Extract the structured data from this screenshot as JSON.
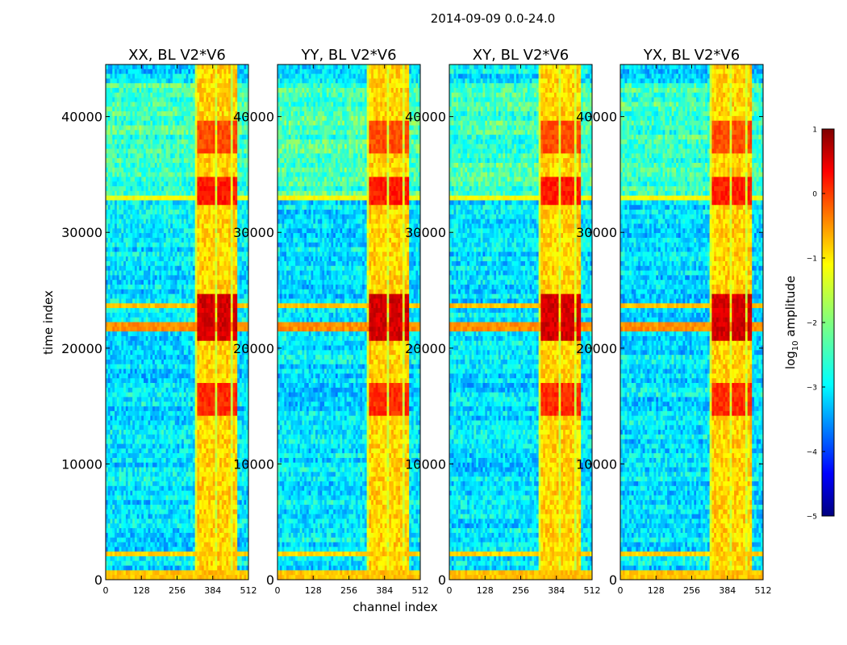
{
  "figure": {
    "title": "2014-09-09 0.0-24.0"
  },
  "chart_data": {
    "type": "heatmap",
    "title": "2014-09-09 0.0-24.0",
    "xlabel": "channel index",
    "ylabel": "time index",
    "xlim": [
      0,
      512
    ],
    "ylim": [
      0,
      44500
    ],
    "xticks": [
      0,
      128,
      256,
      384,
      512
    ],
    "yticks": [
      0,
      10000,
      20000,
      30000,
      40000
    ],
    "colormap": "jet",
    "colorbar": {
      "label": "log10 amplitude",
      "label_base": "log",
      "label_sub": "10",
      "label_rest": " amplitude",
      "range": [
        -5,
        1
      ],
      "ticks": [
        1,
        0,
        -1,
        -2,
        -3,
        -4,
        -5
      ],
      "tick_labels": [
        "1",
        "0",
        "−1",
        "−2",
        "−3",
        "−4",
        "−5"
      ]
    },
    "panels": [
      {
        "title": "XX, BL V2*V6",
        "polarization": "XX"
      },
      {
        "title": "YY, BL V2*V6",
        "polarization": "YY"
      },
      {
        "title": "XY, BL V2*V6",
        "polarization": "XY"
      },
      {
        "title": "YX, BL V2*V6",
        "polarization": "YX"
      }
    ],
    "background_level": -2.9,
    "rfi_channel_bands": [
      [
        325,
        346
      ],
      [
        348,
        372
      ],
      [
        374,
        394
      ],
      [
        402,
        422
      ],
      [
        428,
        448
      ],
      [
        455,
        470
      ]
    ],
    "strong_time_blocks": [
      {
        "t": [
          36800,
          39800
        ],
        "level": -0.2
      },
      {
        "t": [
          32200,
          34800
        ],
        "level": 0.1
      },
      {
        "t": [
          20800,
          24800
        ],
        "level": 0.5
      },
      {
        "t": [
          14000,
          17000
        ],
        "level": 0.0
      }
    ],
    "broadband_time_rows": [
      {
        "t": [
          0,
          900
        ],
        "level": -0.9
      },
      {
        "t": [
          1900,
          2600
        ],
        "level": -1.0
      },
      {
        "t": [
          21400,
          22200
        ],
        "level": -0.6
      },
      {
        "t": [
          23600,
          23900
        ],
        "level": -0.9
      },
      {
        "t": [
          32700,
          33100
        ],
        "level": -1.3
      }
    ]
  }
}
